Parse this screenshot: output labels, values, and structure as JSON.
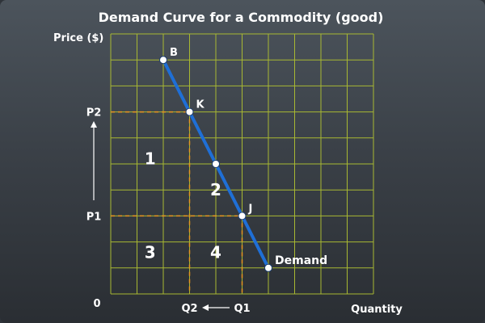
{
  "chart_data": {
    "type": "line",
    "title": "Demand Curve for a Commodity (good)",
    "ylabel": "Price ($)",
    "xlabel": "Quantity",
    "origin_label": "0",
    "xlim": [
      0,
      10
    ],
    "ylim": [
      0,
      10
    ],
    "grid": true,
    "series": [
      {
        "name": "Demand",
        "x": [
          2,
          3,
          4,
          5,
          6
        ],
        "y": [
          9,
          7,
          5,
          3,
          1
        ]
      }
    ],
    "points": [
      {
        "label": "B",
        "x": 2,
        "y": 9
      },
      {
        "label": "K",
        "x": 3,
        "y": 7
      },
      {
        "label": "J",
        "x": 5,
        "y": 3
      }
    ],
    "reference_lines": [
      {
        "label": "P2",
        "axis": "y",
        "value": 7,
        "to_x": 3
      },
      {
        "label": "P1",
        "axis": "y",
        "value": 3,
        "to_x": 5
      },
      {
        "label": "Q2",
        "axis": "x",
        "value": 3,
        "to_y": 7
      },
      {
        "label": "Q1",
        "axis": "x",
        "value": 5,
        "to_y": 3
      }
    ],
    "regions": [
      {
        "label": "1",
        "x": 1.5,
        "y": 5.2
      },
      {
        "label": "2",
        "x": 4,
        "y": 4
      },
      {
        "label": "3",
        "x": 1.5,
        "y": 1.6
      },
      {
        "label": "4",
        "x": 4,
        "y": 1.6
      }
    ],
    "arrows": [
      {
        "axis": "y",
        "from": "P1",
        "to": "P2"
      },
      {
        "axis": "x",
        "from": "Q1",
        "to": "Q2"
      }
    ],
    "colors": {
      "grid": "#a8b832",
      "curve": "#1f6fd6",
      "reference": "#e8941e",
      "text": "#ffffff",
      "point": "#ffffff"
    }
  }
}
